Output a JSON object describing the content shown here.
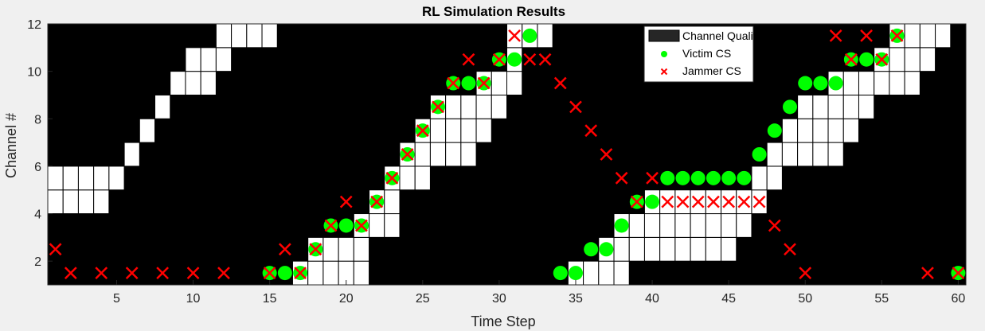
{
  "chart_data": {
    "type": "heatmap",
    "title": "RL Simulation Results",
    "xlabel": "Time Step",
    "ylabel": "Channel #",
    "xlim": [
      0.5,
      60.5
    ],
    "ylim": [
      1,
      12
    ],
    "xticks": [
      5,
      10,
      15,
      20,
      25,
      30,
      35,
      40,
      45,
      50,
      55,
      60
    ],
    "yticks": [
      2,
      4,
      6,
      8,
      10,
      12
    ],
    "grid": false,
    "legend_position": "top-right",
    "legend": [
      "Channel Quality",
      "Victim CS",
      "Jammer CS"
    ],
    "colors": {
      "background": "#000000",
      "good_cell": "#ffffff",
      "cell_border": "#000000",
      "victim": "#00ff00",
      "jammer": "#ff0000",
      "figure": "#f0f0f0",
      "axis_text": "#262626"
    },
    "channel_quality_good": [
      {
        "t": 1,
        "channels": [
          5,
          6
        ]
      },
      {
        "t": 2,
        "channels": [
          5,
          6
        ]
      },
      {
        "t": 3,
        "channels": [
          5,
          6
        ]
      },
      {
        "t": 4,
        "channels": [
          5,
          6
        ]
      },
      {
        "t": 5,
        "channels": [
          6
        ]
      },
      {
        "t": 6,
        "channels": [
          7
        ]
      },
      {
        "t": 7,
        "channels": [
          8
        ]
      },
      {
        "t": 8,
        "channels": [
          9
        ]
      },
      {
        "t": 9,
        "channels": [
          10
        ]
      },
      {
        "t": 10,
        "channels": [
          10,
          11
        ]
      },
      {
        "t": 11,
        "channels": [
          10,
          11
        ]
      },
      {
        "t": 12,
        "channels": [
          11,
          12
        ]
      },
      {
        "t": 13,
        "channels": [
          12
        ]
      },
      {
        "t": 14,
        "channels": [
          12
        ]
      },
      {
        "t": 15,
        "channels": [
          12
        ]
      },
      {
        "t": 16,
        "channels": [
          1
        ]
      },
      {
        "t": 17,
        "channels": [
          1,
          2
        ]
      },
      {
        "t": 18,
        "channels": [
          1,
          2,
          3
        ]
      },
      {
        "t": 19,
        "channels": [
          1,
          2,
          3
        ]
      },
      {
        "t": 20,
        "channels": [
          1,
          2,
          3
        ]
      },
      {
        "t": 21,
        "channels": [
          2,
          3,
          4
        ]
      },
      {
        "t": 22,
        "channels": [
          4,
          5
        ]
      },
      {
        "t": 23,
        "channels": [
          4,
          5,
          6
        ]
      },
      {
        "t": 24,
        "channels": [
          6,
          7
        ]
      },
      {
        "t": 25,
        "channels": [
          6,
          7,
          8
        ]
      },
      {
        "t": 26,
        "channels": [
          7,
          8,
          9
        ]
      },
      {
        "t": 27,
        "channels": [
          7,
          8,
          9
        ]
      },
      {
        "t": 28,
        "channels": [
          7,
          8,
          9
        ]
      },
      {
        "t": 29,
        "channels": [
          8,
          9,
          10
        ]
      },
      {
        "t": 30,
        "channels": [
          9,
          10
        ]
      },
      {
        "t": 31,
        "channels": [
          10,
          11,
          12
        ]
      },
      {
        "t": 32,
        "channels": [
          12
        ]
      },
      {
        "t": 33,
        "channels": [
          12
        ]
      },
      {
        "t": 34,
        "channels": [
          1
        ]
      },
      {
        "t": 35,
        "channels": [
          1,
          2
        ]
      },
      {
        "t": 36,
        "channels": [
          1,
          2
        ]
      },
      {
        "t": 37,
        "channels": [
          1,
          2,
          3
        ]
      },
      {
        "t": 38,
        "channels": [
          2,
          3,
          4
        ]
      },
      {
        "t": 39,
        "channels": [
          3,
          4
        ]
      },
      {
        "t": 40,
        "channels": [
          3,
          4,
          5
        ]
      },
      {
        "t": 41,
        "channels": [
          3,
          4,
          5
        ]
      },
      {
        "t": 42,
        "channels": [
          3,
          4,
          5
        ]
      },
      {
        "t": 43,
        "channels": [
          3,
          4,
          5
        ]
      },
      {
        "t": 44,
        "channels": [
          3,
          4,
          5
        ]
      },
      {
        "t": 45,
        "channels": [
          3,
          4,
          5
        ]
      },
      {
        "t": 46,
        "channels": [
          4,
          5
        ]
      },
      {
        "t": 47,
        "channels": [
          5,
          6
        ]
      },
      {
        "t": 48,
        "channels": [
          6,
          7
        ]
      },
      {
        "t": 49,
        "channels": [
          7,
          8
        ]
      },
      {
        "t": 50,
        "channels": [
          7,
          8,
          9
        ]
      },
      {
        "t": 51,
        "channels": [
          7,
          8,
          9
        ]
      },
      {
        "t": 52,
        "channels": [
          7,
          8,
          9,
          10
        ]
      },
      {
        "t": 53,
        "channels": [
          8,
          9,
          10
        ]
      },
      {
        "t": 54,
        "channels": [
          9,
          10
        ]
      },
      {
        "t": 55,
        "channels": [
          10,
          11
        ]
      },
      {
        "t": 56,
        "channels": [
          10,
          11,
          12
        ]
      },
      {
        "t": 57,
        "channels": [
          10,
          11,
          12
        ]
      },
      {
        "t": 58,
        "channels": [
          11,
          12
        ]
      },
      {
        "t": 59,
        "channels": [
          12
        ]
      },
      {
        "t": 60,
        "channels": [
          1
        ]
      }
    ],
    "victim_cs": [
      {
        "t": 15,
        "ch": 1.5
      },
      {
        "t": 16,
        "ch": 1.5
      },
      {
        "t": 17,
        "ch": 1.5
      },
      {
        "t": 18,
        "ch": 2.5
      },
      {
        "t": 19,
        "ch": 3.5
      },
      {
        "t": 20,
        "ch": 3.5
      },
      {
        "t": 21,
        "ch": 3.5
      },
      {
        "t": 22,
        "ch": 4.5
      },
      {
        "t": 23,
        "ch": 5.5
      },
      {
        "t": 24,
        "ch": 6.5
      },
      {
        "t": 25,
        "ch": 7.5
      },
      {
        "t": 26,
        "ch": 8.5
      },
      {
        "t": 27,
        "ch": 9.5
      },
      {
        "t": 28,
        "ch": 9.5
      },
      {
        "t": 29,
        "ch": 9.5
      },
      {
        "t": 30,
        "ch": 10.5
      },
      {
        "t": 31,
        "ch": 10.5
      },
      {
        "t": 32,
        "ch": 11.5
      },
      {
        "t": 34,
        "ch": 1.5
      },
      {
        "t": 35,
        "ch": 1.5
      },
      {
        "t": 36,
        "ch": 2.5
      },
      {
        "t": 37,
        "ch": 2.5
      },
      {
        "t": 38,
        "ch": 3.5
      },
      {
        "t": 39,
        "ch": 4.5
      },
      {
        "t": 40,
        "ch": 4.5
      },
      {
        "t": 41,
        "ch": 5.5
      },
      {
        "t": 42,
        "ch": 5.5
      },
      {
        "t": 43,
        "ch": 5.5
      },
      {
        "t": 44,
        "ch": 5.5
      },
      {
        "t": 45,
        "ch": 5.5
      },
      {
        "t": 46,
        "ch": 5.5
      },
      {
        "t": 47,
        "ch": 6.5
      },
      {
        "t": 48,
        "ch": 7.5
      },
      {
        "t": 49,
        "ch": 8.5
      },
      {
        "t": 50,
        "ch": 9.5
      },
      {
        "t": 51,
        "ch": 9.5
      },
      {
        "t": 52,
        "ch": 9.5
      },
      {
        "t": 53,
        "ch": 10.5
      },
      {
        "t": 54,
        "ch": 10.5
      },
      {
        "t": 55,
        "ch": 10.5
      },
      {
        "t": 56,
        "ch": 11.5
      },
      {
        "t": 60,
        "ch": 1.5
      }
    ],
    "jammer_cs": [
      {
        "t": 1,
        "ch": 2.5
      },
      {
        "t": 2,
        "ch": 1.5
      },
      {
        "t": 4,
        "ch": 1.5
      },
      {
        "t": 6,
        "ch": 1.5
      },
      {
        "t": 8,
        "ch": 1.5
      },
      {
        "t": 10,
        "ch": 1.5
      },
      {
        "t": 12,
        "ch": 1.5
      },
      {
        "t": 15,
        "ch": 1.5
      },
      {
        "t": 16,
        "ch": 2.5
      },
      {
        "t": 17,
        "ch": 1.5
      },
      {
        "t": 18,
        "ch": 2.5
      },
      {
        "t": 19,
        "ch": 3.5
      },
      {
        "t": 20,
        "ch": 4.5
      },
      {
        "t": 21,
        "ch": 3.5
      },
      {
        "t": 22,
        "ch": 4.5
      },
      {
        "t": 23,
        "ch": 5.5
      },
      {
        "t": 24,
        "ch": 6.5
      },
      {
        "t": 25,
        "ch": 7.5
      },
      {
        "t": 26,
        "ch": 8.5
      },
      {
        "t": 27,
        "ch": 9.5
      },
      {
        "t": 28,
        "ch": 10.5
      },
      {
        "t": 29,
        "ch": 9.5
      },
      {
        "t": 30,
        "ch": 10.5
      },
      {
        "t": 31,
        "ch": 11.5
      },
      {
        "t": 32,
        "ch": 10.5
      },
      {
        "t": 33,
        "ch": 10.5
      },
      {
        "t": 34,
        "ch": 9.5
      },
      {
        "t": 35,
        "ch": 8.5
      },
      {
        "t": 36,
        "ch": 7.5
      },
      {
        "t": 37,
        "ch": 6.5
      },
      {
        "t": 38,
        "ch": 5.5
      },
      {
        "t": 39,
        "ch": 4.5
      },
      {
        "t": 40,
        "ch": 5.5
      },
      {
        "t": 41,
        "ch": 4.5
      },
      {
        "t": 42,
        "ch": 4.5
      },
      {
        "t": 43,
        "ch": 4.5
      },
      {
        "t": 44,
        "ch": 4.5
      },
      {
        "t": 45,
        "ch": 4.5
      },
      {
        "t": 46,
        "ch": 4.5
      },
      {
        "t": 47,
        "ch": 4.5
      },
      {
        "t": 48,
        "ch": 3.5
      },
      {
        "t": 49,
        "ch": 2.5
      },
      {
        "t": 50,
        "ch": 1.5
      },
      {
        "t": 52,
        "ch": 11.5
      },
      {
        "t": 53,
        "ch": 10.5
      },
      {
        "t": 54,
        "ch": 11.5
      },
      {
        "t": 55,
        "ch": 10.5
      },
      {
        "t": 56,
        "ch": 11.5
      },
      {
        "t": 58,
        "ch": 1.5
      },
      {
        "t": 60,
        "ch": 1.5
      }
    ]
  }
}
